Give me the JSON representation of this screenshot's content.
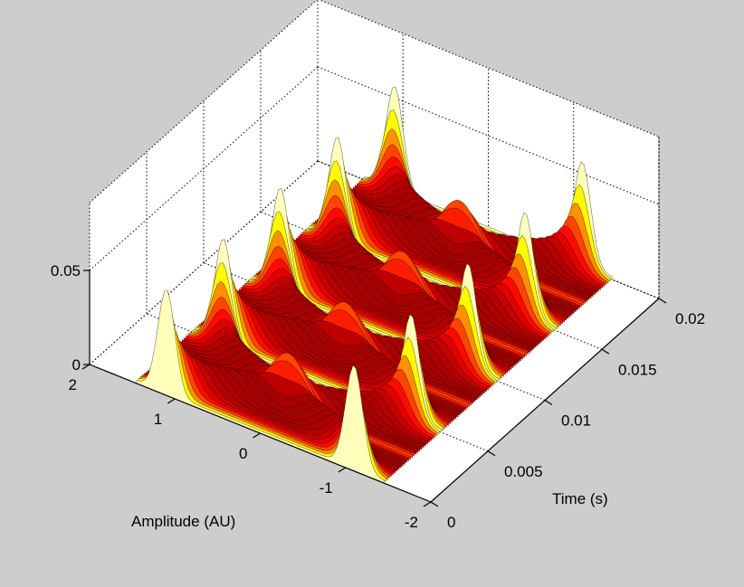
{
  "chart_data": {
    "type": "surface",
    "title": "",
    "zlabel": "",
    "colormap": "hot",
    "background_color": "#cdcdcd",
    "axes_color": "#ffffff",
    "grid": true,
    "x_axis": {
      "label": "Time (s)",
      "range": [
        0,
        0.02
      ],
      "ticks": [
        0,
        0.005,
        0.01,
        0.015,
        0.02
      ],
      "tick_labels": [
        "0",
        "0.005",
        "0.01",
        "0.015",
        "0.02"
      ]
    },
    "y_axis": {
      "label": "Amplitude (AU)",
      "range": [
        -2,
        2
      ],
      "ticks": [
        -2,
        -1,
        0,
        1,
        2
      ],
      "tick_labels": [
        "-2",
        "-1",
        "0",
        "1",
        "2"
      ]
    },
    "z_axis": {
      "label": "",
      "range": [
        0,
        0.05
      ],
      "ticks": [
        0,
        0.05
      ],
      "tick_labels": [
        "0",
        "0.05"
      ]
    },
    "ridges": [
      {
        "name": "",
        "y_center": 0.0,
        "y_amplitude": 1.1,
        "phase": 0.0,
        "peak_z": 0.055
      },
      {
        "name": "",
        "y_center": 0.0,
        "y_amplitude": 1.1,
        "phase": 3.1416,
        "peak_z": 0.055
      }
    ],
    "signal_frequency_hz": 100,
    "peak_z": 0.06
  }
}
